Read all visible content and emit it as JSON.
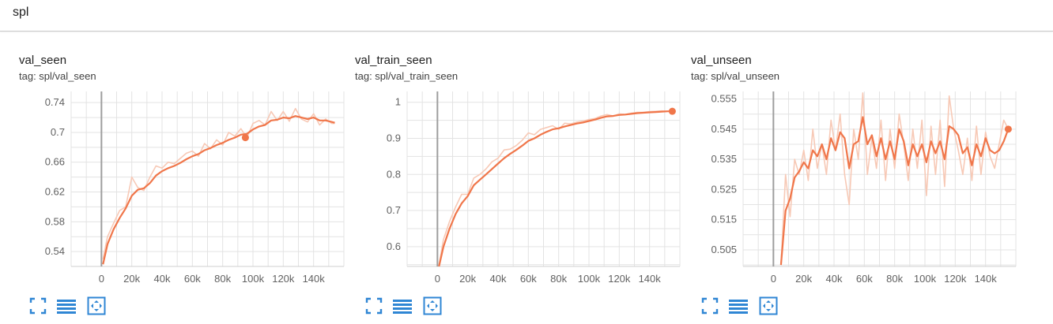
{
  "header": {
    "title": "spl"
  },
  "colors": {
    "line": "#f0764a",
    "raw": "#f7c9b6",
    "grid": "#e3e3e3",
    "axis": "#9e9e9e",
    "toolbar_icon": "#2f86d4"
  },
  "toolbar": {
    "icons": [
      "fit-to-screen-icon",
      "toggle-log-scale-icon",
      "fit-domain-to-data-icon"
    ]
  },
  "chart_data": [
    {
      "type": "line",
      "title": "val_seen",
      "tag": "tag: spl/val_seen",
      "xlim": [
        -20000,
        160000
      ],
      "ylim": [
        0.52,
        0.755
      ],
      "x_ticks": [
        0,
        20000,
        40000,
        60000,
        80000,
        100000,
        120000,
        140000
      ],
      "x_tick_labels": [
        "0",
        "20k",
        "40k",
        "60k",
        "80k",
        "100k",
        "120k",
        "140k"
      ],
      "y_ticks": [
        0.54,
        0.58,
        0.62,
        0.66,
        0.7,
        0.74
      ],
      "y_tick_labels": [
        "0.54",
        "0.58",
        "0.62",
        "0.66",
        "0.7",
        "0.74"
      ],
      "series": [
        {
          "style": "raw",
          "x": [
            1000,
            4000,
            8000,
            12000,
            16000,
            20000,
            24000,
            28000,
            32000,
            36000,
            40000,
            44000,
            48000,
            52000,
            56000,
            60000,
            64000,
            68000,
            72000,
            76000,
            80000,
            84000,
            88000,
            92000,
            96000,
            100000,
            104000,
            108000,
            112000,
            116000,
            120000,
            124000,
            128000,
            132000,
            136000,
            140000,
            144000,
            148000,
            152000,
            154000
          ],
          "y": [
            0.53,
            0.56,
            0.578,
            0.595,
            0.6,
            0.64,
            0.626,
            0.622,
            0.64,
            0.655,
            0.652,
            0.66,
            0.658,
            0.665,
            0.672,
            0.675,
            0.668,
            0.685,
            0.678,
            0.69,
            0.683,
            0.7,
            0.695,
            0.705,
            0.693,
            0.712,
            0.716,
            0.71,
            0.728,
            0.716,
            0.728,
            0.715,
            0.732,
            0.718,
            0.714,
            0.725,
            0.71,
            0.718,
            0.712,
            0.712
          ]
        },
        {
          "style": "smoothed",
          "x": [
            1000,
            4000,
            8000,
            12000,
            16000,
            20000,
            24000,
            28000,
            32000,
            36000,
            40000,
            44000,
            48000,
            52000,
            56000,
            60000,
            64000,
            68000,
            72000,
            76000,
            80000,
            84000,
            88000,
            92000,
            96000,
            100000,
            104000,
            108000,
            112000,
            116000,
            120000,
            124000,
            128000,
            132000,
            136000,
            140000,
            144000,
            148000,
            152000,
            154000
          ],
          "y": [
            0.523,
            0.55,
            0.57,
            0.585,
            0.598,
            0.615,
            0.623,
            0.625,
            0.632,
            0.642,
            0.648,
            0.652,
            0.655,
            0.659,
            0.664,
            0.668,
            0.671,
            0.676,
            0.679,
            0.683,
            0.686,
            0.69,
            0.693,
            0.697,
            0.698,
            0.704,
            0.708,
            0.71,
            0.716,
            0.717,
            0.72,
            0.719,
            0.722,
            0.72,
            0.718,
            0.72,
            0.716,
            0.716,
            0.714,
            0.713
          ]
        }
      ],
      "last_point": {
        "x": 95000,
        "y": 0.693
      }
    },
    {
      "type": "line",
      "title": "val_train_seen",
      "tag": "tag: spl/val_train_seen",
      "xlim": [
        -20000,
        160000
      ],
      "ylim": [
        0.545,
        1.03
      ],
      "x_ticks": [
        0,
        20000,
        40000,
        60000,
        80000,
        100000,
        120000,
        140000
      ],
      "x_tick_labels": [
        "0",
        "20k",
        "40k",
        "60k",
        "80k",
        "100k",
        "120k",
        "140k"
      ],
      "y_ticks": [
        0.6,
        0.7,
        0.8,
        0.9,
        1
      ],
      "y_tick_labels": [
        "0.6",
        "0.7",
        "0.8",
        "0.9",
        "1"
      ],
      "series": [
        {
          "style": "raw",
          "x": [
            1000,
            4000,
            8000,
            12000,
            16000,
            20000,
            24000,
            28000,
            32000,
            36000,
            40000,
            44000,
            48000,
            52000,
            56000,
            60000,
            64000,
            68000,
            72000,
            76000,
            80000,
            84000,
            88000,
            92000,
            96000,
            100000,
            104000,
            108000,
            112000,
            116000,
            120000,
            124000,
            128000,
            132000,
            136000,
            140000,
            144000,
            148000,
            152000,
            154000
          ],
          "y": [
            0.55,
            0.62,
            0.67,
            0.71,
            0.745,
            0.745,
            0.79,
            0.8,
            0.815,
            0.835,
            0.845,
            0.868,
            0.87,
            0.88,
            0.895,
            0.915,
            0.91,
            0.925,
            0.93,
            0.935,
            0.925,
            0.942,
            0.94,
            0.945,
            0.948,
            0.952,
            0.955,
            0.962,
            0.966,
            0.962,
            0.968,
            0.966,
            0.97,
            0.972,
            0.972,
            0.974,
            0.975,
            0.976,
            0.975,
            0.975
          ]
        },
        {
          "style": "smoothed",
          "x": [
            1000,
            4000,
            8000,
            12000,
            16000,
            20000,
            24000,
            28000,
            32000,
            36000,
            40000,
            44000,
            48000,
            52000,
            56000,
            60000,
            64000,
            68000,
            72000,
            76000,
            80000,
            84000,
            88000,
            92000,
            96000,
            100000,
            104000,
            108000,
            112000,
            116000,
            120000,
            124000,
            128000,
            132000,
            136000,
            140000,
            144000,
            148000,
            152000,
            154000
          ],
          "y": [
            0.545,
            0.6,
            0.65,
            0.69,
            0.72,
            0.74,
            0.77,
            0.785,
            0.8,
            0.815,
            0.83,
            0.845,
            0.857,
            0.868,
            0.88,
            0.893,
            0.9,
            0.91,
            0.918,
            0.925,
            0.928,
            0.933,
            0.937,
            0.941,
            0.944,
            0.948,
            0.952,
            0.957,
            0.961,
            0.962,
            0.965,
            0.966,
            0.968,
            0.97,
            0.971,
            0.972,
            0.973,
            0.974,
            0.975,
            0.975
          ]
        }
      ],
      "last_point": {
        "x": 155000,
        "y": 0.975
      }
    },
    {
      "type": "line",
      "title": "val_unseen",
      "tag": "tag: spl/val_unseen",
      "xlim": [
        -20000,
        160000
      ],
      "ylim": [
        0.4995,
        0.5575
      ],
      "x_ticks": [
        0,
        20000,
        40000,
        60000,
        80000,
        100000,
        120000,
        140000
      ],
      "x_tick_labels": [
        "0",
        "20k",
        "40k",
        "60k",
        "80k",
        "100k",
        "120k",
        "140k"
      ],
      "y_ticks": [
        0.505,
        0.515,
        0.525,
        0.535,
        0.545,
        0.555
      ],
      "y_tick_labels": [
        "0.505",
        "0.515",
        "0.525",
        "0.535",
        "0.545",
        "0.555"
      ],
      "series": [
        {
          "style": "raw",
          "x": [
            5000,
            8000,
            11000,
            14000,
            17000,
            20000,
            23000,
            26000,
            29000,
            32000,
            35000,
            38000,
            41000,
            44000,
            47000,
            50000,
            53000,
            56000,
            59000,
            62000,
            65000,
            68000,
            71000,
            74000,
            77000,
            80000,
            83000,
            86000,
            89000,
            92000,
            95000,
            98000,
            101000,
            104000,
            107000,
            110000,
            113000,
            116000,
            119000,
            122000,
            125000,
            128000,
            131000,
            134000,
            137000,
            140000,
            143000,
            146000,
            149000,
            152000,
            155000
          ],
          "y": [
            0.5,
            0.53,
            0.516,
            0.535,
            0.53,
            0.538,
            0.528,
            0.545,
            0.532,
            0.54,
            0.53,
            0.548,
            0.538,
            0.55,
            0.53,
            0.52,
            0.545,
            0.535,
            0.557,
            0.53,
            0.542,
            0.532,
            0.548,
            0.528,
            0.545,
            0.532,
            0.55,
            0.54,
            0.528,
            0.545,
            0.532,
            0.548,
            0.523,
            0.546,
            0.53,
            0.548,
            0.526,
            0.556,
            0.545,
            0.538,
            0.53,
            0.542,
            0.528,
            0.546,
            0.53,
            0.544,
            0.536,
            0.532,
            0.54,
            0.548,
            0.545
          ]
        },
        {
          "style": "smoothed",
          "x": [
            5000,
            8000,
            11000,
            14000,
            17000,
            20000,
            23000,
            26000,
            29000,
            32000,
            35000,
            38000,
            41000,
            44000,
            47000,
            50000,
            53000,
            56000,
            59000,
            62000,
            65000,
            68000,
            71000,
            74000,
            77000,
            80000,
            83000,
            86000,
            89000,
            92000,
            95000,
            98000,
            101000,
            104000,
            107000,
            110000,
            113000,
            116000,
            119000,
            122000,
            125000,
            128000,
            131000,
            134000,
            137000,
            140000,
            143000,
            146000,
            149000,
            152000,
            155000
          ],
          "y": [
            0.5,
            0.518,
            0.522,
            0.529,
            0.531,
            0.534,
            0.532,
            0.538,
            0.536,
            0.54,
            0.535,
            0.542,
            0.538,
            0.544,
            0.542,
            0.532,
            0.54,
            0.541,
            0.549,
            0.54,
            0.543,
            0.536,
            0.542,
            0.535,
            0.541,
            0.535,
            0.545,
            0.541,
            0.533,
            0.54,
            0.536,
            0.54,
            0.534,
            0.541,
            0.537,
            0.541,
            0.535,
            0.546,
            0.545,
            0.543,
            0.537,
            0.539,
            0.533,
            0.54,
            0.536,
            0.542,
            0.538,
            0.537,
            0.538,
            0.541,
            0.545
          ]
        }
      ],
      "last_point": {
        "x": 155000,
        "y": 0.545
      }
    }
  ]
}
